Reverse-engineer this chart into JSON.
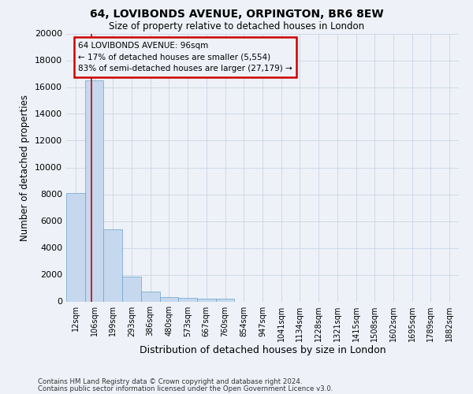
{
  "title1": "64, LOVIBONDS AVENUE, ORPINGTON, BR6 8EW",
  "title2": "Size of property relative to detached houses in London",
  "xlabel": "Distribution of detached houses by size in London",
  "ylabel": "Number of detached properties",
  "categories": [
    "12sqm",
    "106sqm",
    "199sqm",
    "293sqm",
    "386sqm",
    "480sqm",
    "573sqm",
    "667sqm",
    "760sqm",
    "854sqm",
    "947sqm",
    "1041sqm",
    "1134sqm",
    "1228sqm",
    "1321sqm",
    "1415sqm",
    "1508sqm",
    "1602sqm",
    "1695sqm",
    "1789sqm",
    "1882sqm"
  ],
  "values": [
    8100,
    16500,
    5400,
    1850,
    750,
    350,
    270,
    220,
    200,
    0,
    0,
    0,
    0,
    0,
    0,
    0,
    0,
    0,
    0,
    0,
    0
  ],
  "bar_color": "#c5d8ee",
  "bar_edge_color": "#6ba3cc",
  "grid_color": "#cdd8e8",
  "annotation_box_color": "#cc0000",
  "vline_color": "#cc0000",
  "annotation_line1": "64 LOVIBONDS AVENUE: 96sqm",
  "annotation_line2": "← 17% of detached houses are smaller (5,554)",
  "annotation_line3": "83% of semi-detached houses are larger (27,179) →",
  "vline_x": 0.83,
  "ylim": [
    0,
    20000
  ],
  "yticks": [
    0,
    2000,
    4000,
    6000,
    8000,
    10000,
    12000,
    14000,
    16000,
    18000,
    20000
  ],
  "footer1": "Contains HM Land Registry data © Crown copyright and database right 2024.",
  "footer2": "Contains public sector information licensed under the Open Government Licence v3.0.",
  "bg_color": "#eef2f8"
}
